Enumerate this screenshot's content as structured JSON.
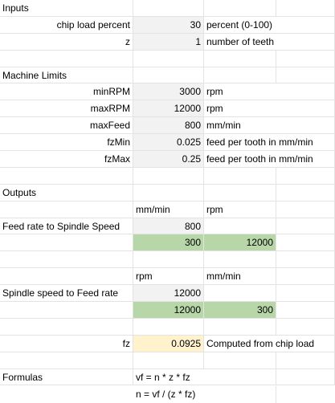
{
  "inputs": {
    "heading": "Inputs",
    "chip_load_label": "chip load percent",
    "chip_load_value": "30",
    "chip_load_unit": "percent (0-100)",
    "z_label": "z",
    "z_value": "1",
    "z_unit": "number of teeth"
  },
  "limits": {
    "heading": "Machine Limits",
    "rows": [
      {
        "label": "minRPM",
        "value": "3000",
        "unit": "rpm"
      },
      {
        "label": "maxRPM",
        "value": "12000",
        "unit": "rpm"
      },
      {
        "label": "maxFeed",
        "value": "800",
        "unit": "mm/min"
      },
      {
        "label": "fzMin",
        "value": "0.025",
        "unit": "feed per tooth in mm/min"
      },
      {
        "label": "fzMax",
        "value": "0.25",
        "unit": "feed per tooth in mm/min"
      }
    ]
  },
  "outputs": {
    "heading": "Outputs",
    "feed_to_spindle": {
      "unit_b": "mm/min",
      "unit_c": "rpm",
      "label": "Feed rate to Spindle Speed",
      "input_value": "800",
      "result_b": "300",
      "result_c": "12000"
    },
    "spindle_to_feed": {
      "unit_b": "rpm",
      "unit_c": "mm/min",
      "label": "Spindle speed to Feed rate",
      "input_value": "12000",
      "result_b": "12000",
      "result_c": "300"
    },
    "fz": {
      "label": "fz",
      "value": "0.0925",
      "note": "Computed from chip load"
    }
  },
  "formulas": {
    "heading": "Formulas",
    "line1": "vf = n * z * fz",
    "line2": "n = vf / (z * fz)"
  },
  "colors": {
    "input_fill": "#f2f2f2",
    "output_fill": "#b7d7a8",
    "fz_fill": "#fff2cc",
    "gridline": "#e3e3e3"
  }
}
